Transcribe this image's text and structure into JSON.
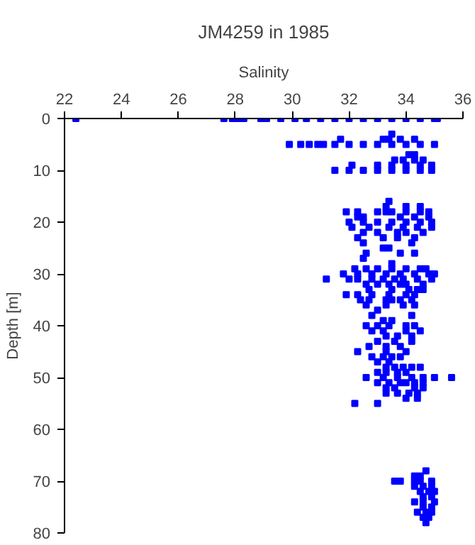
{
  "chart_data": {
    "type": "scatter",
    "title": "JM4259 in 1985",
    "xlabel": "Salinity",
    "ylabel": "Depth [m]",
    "xlim": [
      22,
      36
    ],
    "xticks": [
      22,
      24,
      26,
      28,
      30,
      32,
      34,
      36
    ],
    "ylim": [
      80,
      0
    ],
    "yticks": [
      0,
      10,
      20,
      30,
      40,
      50,
      60,
      70,
      80
    ],
    "marker": "square",
    "series": [
      {
        "color": "#0000ff",
        "x": [
          22.4,
          27.6,
          27.9,
          28.1,
          28.3,
          28.9,
          29.1,
          29.6,
          30.1,
          30.5,
          31.0,
          31.5,
          32.0,
          32.5,
          33.0,
          33.5,
          34.0,
          34.5,
          35.0,
          35.1,
          33.5,
          31.7,
          33.2,
          33.4,
          33.8,
          34.3,
          29.9,
          30.3,
          30.6,
          30.9,
          31.1,
          31.5,
          32.0,
          32.5,
          33.0,
          33.5,
          34.0,
          34.5,
          35.0,
          34.1,
          34.3,
          33.6,
          33.9,
          34.3,
          34.6,
          32.1,
          33.0,
          33.5,
          34.0,
          34.5,
          34.9,
          31.5,
          32.0,
          32.5,
          33.0,
          33.5,
          34.0,
          34.5,
          34.9,
          33.4,
          33.3,
          34.0,
          34.5,
          31.9,
          32.3,
          33.0,
          33.3,
          33.5,
          34.0,
          34.5,
          34.8,
          32.3,
          32.5,
          33.8,
          34.3,
          34.8,
          32.0,
          32.5,
          33.0,
          33.5,
          34.0,
          34.5,
          34.9,
          32.1,
          32.7,
          33.4,
          33.9,
          34.4,
          34.9,
          32.5,
          33.0,
          33.7,
          34.0,
          34.6,
          32.3,
          33.2,
          33.7,
          34.3,
          32.5,
          34.2,
          33.2,
          33.4,
          32.6,
          33.8,
          34.3,
          32.5,
          33.5,
          32.2,
          32.6,
          33.0,
          33.5,
          34.0,
          34.5,
          34.7,
          31.8,
          32.3,
          32.8,
          33.3,
          33.8,
          34.3,
          34.8,
          35.0,
          31.2,
          32.0,
          32.3,
          32.8,
          33.2,
          33.6,
          33.9,
          34.4,
          34.9,
          32.6,
          33.0,
          33.4,
          33.8,
          34.0,
          34.6,
          32.7,
          33.5,
          34.1,
          34.4,
          34.6,
          31.9,
          32.3,
          32.8,
          33.4,
          34.0,
          34.3,
          32.4,
          32.7,
          33.3,
          33.5,
          33.8,
          34.2,
          32.6,
          33.3,
          33.9,
          34.3,
          33.0,
          32.8,
          34.2,
          33.2,
          33.5,
          32.6,
          33.0,
          33.4,
          34.0,
          34.3,
          32.8,
          33.2,
          34.0,
          34.5,
          33.3,
          33.7,
          34.2,
          33.0,
          33.6,
          34.2,
          32.7,
          33.3,
          33.8,
          32.3,
          33.3,
          34.0,
          32.8,
          33.2,
          33.5,
          33.8,
          33.0,
          33.4,
          33.3,
          33.6,
          33.9,
          34.2,
          34.5,
          33.0,
          33.3,
          33.7,
          34.0,
          32.6,
          33.2,
          33.7,
          34.2,
          34.6,
          35.0,
          35.6,
          33.0,
          33.4,
          33.8,
          34.0,
          34.3,
          34.6,
          33.3,
          33.6,
          34.3,
          34.6,
          33.3,
          33.7,
          34.1,
          34.4,
          34.0,
          34.4,
          32.2,
          33.0,
          34.7,
          34.3,
          34.5,
          33.6,
          33.8,
          34.3,
          34.5,
          34.9,
          34.3,
          34.6,
          34.9,
          34.5,
          34.8,
          35.0,
          34.6,
          34.9,
          34.3,
          34.6,
          35.0,
          34.6,
          34.9,
          34.4,
          34.7,
          34.9,
          34.6,
          34.8,
          34.7
        ],
        "values": [
          0,
          0,
          0,
          0,
          0,
          0,
          0,
          0,
          0,
          0,
          0,
          0,
          0,
          0,
          0,
          0,
          0,
          0,
          0,
          0,
          3,
          4,
          4,
          4,
          4,
          4,
          5,
          5,
          5,
          5,
          5,
          5,
          5,
          5,
          5,
          5,
          5,
          5,
          5,
          7,
          7,
          8,
          8,
          8,
          8,
          9,
          9,
          9,
          9,
          9,
          9,
          10,
          10,
          10,
          10,
          10,
          10,
          10,
          10,
          16,
          17,
          17,
          17,
          18,
          18,
          18,
          18,
          18,
          18,
          18,
          18,
          19,
          19,
          19,
          19,
          19,
          20,
          20,
          20,
          20,
          20,
          20,
          20,
          21,
          21,
          21,
          21,
          21,
          21,
          22,
          22,
          22,
          22,
          22,
          23,
          23,
          23,
          23,
          24,
          24,
          25,
          25,
          26,
          26,
          26,
          27,
          28,
          29,
          29,
          29,
          29,
          29,
          29,
          29,
          30,
          30,
          30,
          30,
          30,
          30,
          30,
          30,
          31,
          31,
          31,
          31,
          31,
          31,
          31,
          31,
          31,
          32,
          32,
          32,
          32,
          32,
          32,
          33,
          33,
          33,
          33,
          33,
          34,
          34,
          34,
          34,
          34,
          34,
          35,
          35,
          35,
          35,
          35,
          35,
          36,
          36,
          36,
          36,
          37,
          38,
          38,
          39,
          39,
          40,
          40,
          40,
          40,
          40,
          41,
          41,
          41,
          41,
          42,
          42,
          42,
          43,
          43,
          43,
          44,
          44,
          44,
          45,
          45,
          45,
          46,
          46,
          46,
          46,
          47,
          47,
          48,
          48,
          48,
          48,
          48,
          49,
          49,
          49,
          49,
          50,
          50,
          50,
          50,
          50,
          50,
          50,
          51,
          51,
          51,
          51,
          51,
          51,
          52,
          52,
          52,
          52,
          53,
          53,
          53,
          53,
          54,
          54,
          55,
          55,
          68,
          69,
          69,
          70,
          70,
          70,
          70,
          70,
          71,
          71,
          71,
          72,
          72,
          72,
          73,
          73,
          74,
          74,
          74,
          75,
          75,
          76,
          76,
          76,
          77,
          77,
          78
        ]
      }
    ]
  }
}
